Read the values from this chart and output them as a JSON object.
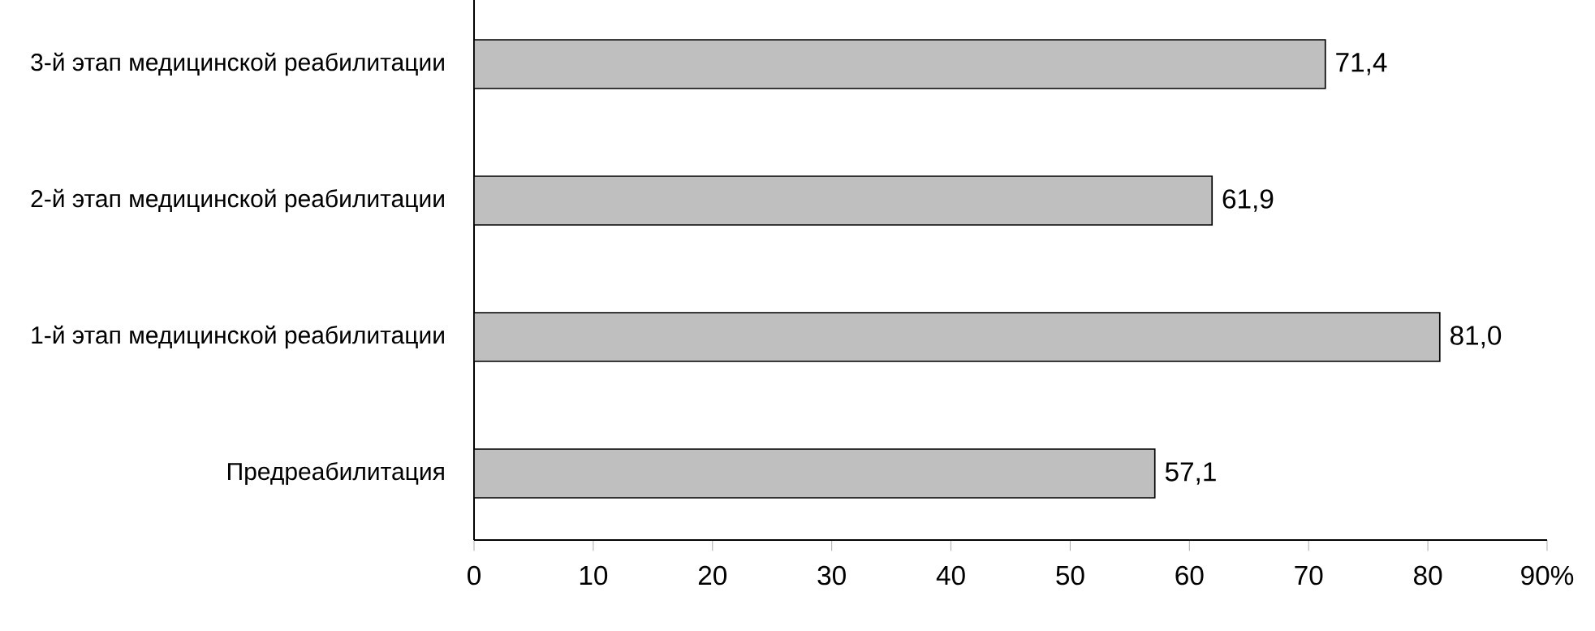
{
  "chart_data": {
    "type": "bar",
    "orientation": "horizontal",
    "categories": [
      "3-й этап медицинской реабилитации",
      "2-й этап медицинской реабилитации",
      "1-й этап медицинской реабилитации",
      "Предреабилитация"
    ],
    "values": [
      71.4,
      61.9,
      81.0,
      57.1
    ],
    "value_labels": [
      "71,4",
      "61,9",
      "81,0",
      "57,1"
    ],
    "color": "#bfbfbf",
    "xlim": [
      0,
      90
    ],
    "xticks": [
      0,
      10,
      20,
      30,
      40,
      50,
      60,
      70,
      80,
      {
        "value": 90,
        "label": "90%"
      }
    ],
    "grid": false
  }
}
